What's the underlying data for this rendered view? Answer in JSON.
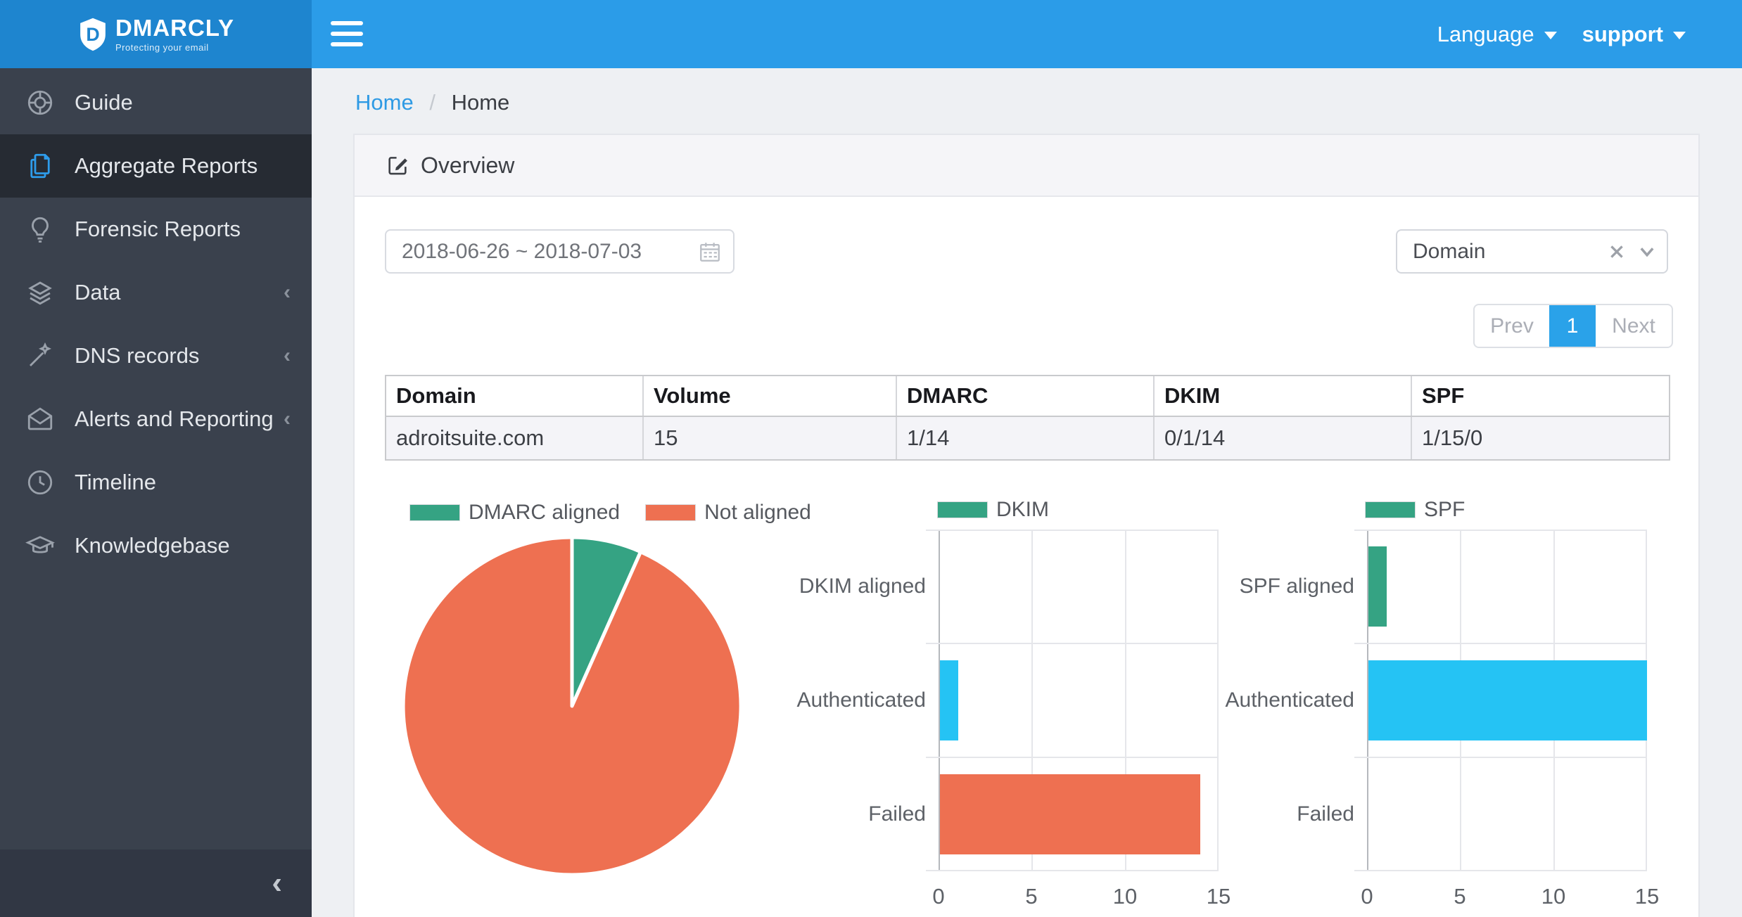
{
  "brand": {
    "name": "DMARCLY",
    "tagline": "Protecting your email"
  },
  "topbar": {
    "language_label": "Language",
    "account_label": "support"
  },
  "sidebar": {
    "items": [
      {
        "label": "Guide",
        "icon": "lifebuoy-icon",
        "active": false,
        "expandable": false
      },
      {
        "label": "Aggregate Reports",
        "icon": "documents-icon",
        "active": true,
        "expandable": false
      },
      {
        "label": "Forensic Reports",
        "icon": "lightbulb-icon",
        "active": false,
        "expandable": false
      },
      {
        "label": "Data",
        "icon": "layers-icon",
        "active": false,
        "expandable": true
      },
      {
        "label": "DNS records",
        "icon": "magic-wand-icon",
        "active": false,
        "expandable": true
      },
      {
        "label": "Alerts and Reporting",
        "icon": "mail-open-icon",
        "active": false,
        "expandable": true
      },
      {
        "label": "Timeline",
        "icon": "clock-icon",
        "active": false,
        "expandable": false
      },
      {
        "label": "Knowledgebase",
        "icon": "graduation-cap-icon",
        "active": false,
        "expandable": false
      }
    ],
    "expand_caret": "‹",
    "collapse_caret": "‹"
  },
  "breadcrumb": {
    "items": [
      "Home",
      "Home"
    ],
    "separator": "/"
  },
  "panel": {
    "title": "Overview"
  },
  "filters": {
    "date_range": "2018-06-26 ~ 2018-07-03",
    "domain_select": {
      "value": "Domain"
    }
  },
  "pagination": {
    "prev": "Prev",
    "current": "1",
    "next": "Next"
  },
  "table": {
    "headers": [
      "Domain",
      "Volume",
      "DMARC",
      "DKIM",
      "SPF"
    ],
    "rows": [
      [
        "adroitsuite.com",
        "15",
        "1/14",
        "0/1/14",
        "1/15/0"
      ]
    ]
  },
  "chart_data": [
    {
      "type": "pie",
      "labels": [
        "DMARC aligned",
        "Not aligned"
      ],
      "values": [
        1,
        14
      ],
      "colors": [
        "#35a383",
        "#ee7051"
      ],
      "legend_position": "top",
      "start_angle_deg": 0
    },
    {
      "type": "bar",
      "orientation": "horizontal",
      "legend": "DKIM",
      "legend_color": "#35a383",
      "categories": [
        "DKIM aligned",
        "Authenticated",
        "Failed"
      ],
      "values": [
        0,
        1,
        14
      ],
      "bar_colors": [
        "#35a383",
        "#25c3f4",
        "#ee7051"
      ],
      "xlim": [
        0,
        15
      ],
      "xticks": [
        0,
        5,
        10,
        15
      ],
      "grid": true
    },
    {
      "type": "bar",
      "orientation": "horizontal",
      "legend": "SPF",
      "legend_color": "#35a383",
      "categories": [
        "SPF aligned",
        "Authenticated",
        "Failed"
      ],
      "values": [
        1,
        15,
        0
      ],
      "bar_colors": [
        "#35a383",
        "#25c3f4",
        "#ee7051"
      ],
      "xlim": [
        0,
        15
      ],
      "xticks": [
        0,
        5,
        10,
        15
      ],
      "grid": true
    }
  ],
  "colors": {
    "topbar_blue": "#2b9ce8",
    "logo_blue": "#1e85cf",
    "pagination_active": "#2aa2e9",
    "green": "#35a383",
    "orange": "#ee7051",
    "cyan": "#25c3f4"
  }
}
